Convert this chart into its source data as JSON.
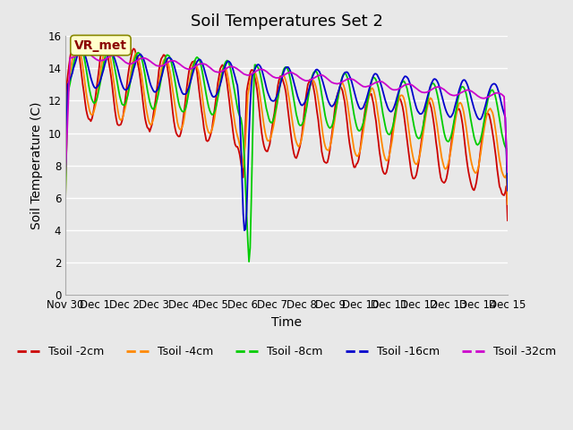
{
  "title": "Soil Temperatures Set 2",
  "xlabel": "Time",
  "ylabel": "Soil Temperature (C)",
  "ylim": [
    0,
    16
  ],
  "yticks": [
    0,
    2,
    4,
    6,
    8,
    10,
    12,
    14,
    16
  ],
  "bg_color": "#e8e8e8",
  "plot_bg_color": "#e8e8e8",
  "grid_color": "white",
  "series_colors": {
    "Tsoil -2cm": "#cc0000",
    "Tsoil -4cm": "#ff8800",
    "Tsoil -8cm": "#00cc00",
    "Tsoil -16cm": "#0000cc",
    "Tsoil -32cm": "#cc00cc"
  },
  "annotation_text": "VR_met",
  "annotation_color": "#8b0000",
  "annotation_bg": "#ffffcc",
  "xtick_labels": [
    "Nov 30",
    "Dec 1",
    "Dec 2",
    "Dec 3",
    "Dec 4",
    "Dec 5",
    "Dec 6",
    "Dec 7",
    "Dec 8",
    "Dec 9",
    "Dec 10",
    "Dec 11",
    "Dec 12",
    "Dec 13",
    "Dec 14",
    "Dec 15"
  ],
  "title_fontsize": 13,
  "axis_fontsize": 10,
  "tick_fontsize": 8.5,
  "legend_fontsize": 9
}
